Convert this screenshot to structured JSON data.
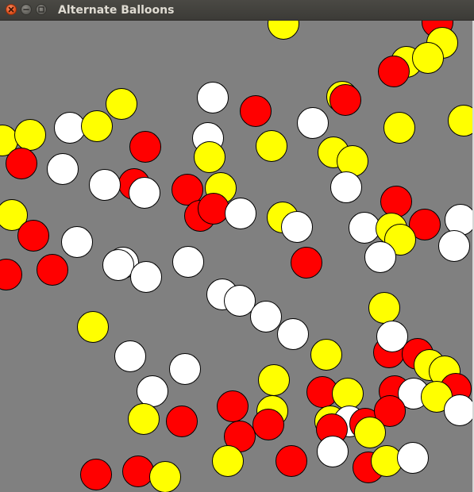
{
  "window": {
    "title": "Alternate Balloons",
    "buttons": {
      "close": "close-icon",
      "minimize": "minimize-icon",
      "maximize": "maximize-icon"
    }
  },
  "canvas": {
    "background": "#808080",
    "balloon_colors": {
      "yellow": "#ffff00",
      "red": "#ff0000",
      "white": "#ffffff",
      "outline": "#000000"
    }
  }
}
